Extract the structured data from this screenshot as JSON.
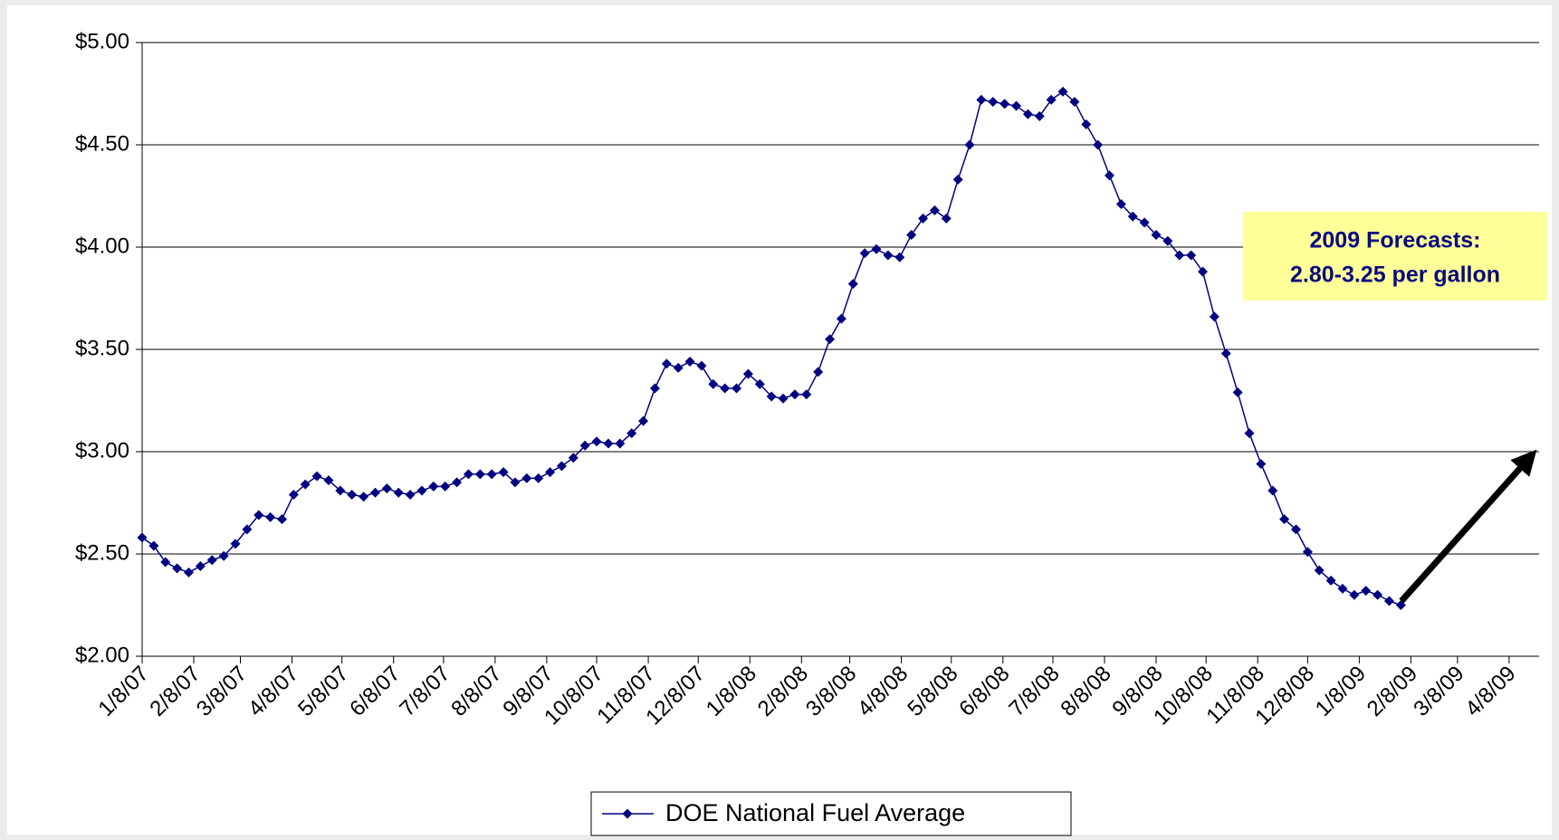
{
  "chart_data": {
    "type": "line",
    "x": [
      "1/8/07",
      "1/15/07",
      "1/22/07",
      "1/29/07",
      "2/5/07",
      "2/12/07",
      "2/19/07",
      "2/26/07",
      "3/5/07",
      "3/12/07",
      "3/19/07",
      "3/26/07",
      "4/2/07",
      "4/9/07",
      "4/16/07",
      "4/23/07",
      "4/30/07",
      "5/7/07",
      "5/14/07",
      "5/21/07",
      "5/28/07",
      "6/4/07",
      "6/11/07",
      "6/18/07",
      "6/25/07",
      "7/2/07",
      "7/9/07",
      "7/16/07",
      "7/23/07",
      "7/30/07",
      "8/6/07",
      "8/13/07",
      "8/20/07",
      "8/27/07",
      "9/3/07",
      "9/10/07",
      "9/17/07",
      "9/24/07",
      "10/1/07",
      "10/8/07",
      "10/15/07",
      "10/22/07",
      "10/29/07",
      "11/5/07",
      "11/12/07",
      "11/19/07",
      "11/26/07",
      "12/3/07",
      "12/10/07",
      "12/17/07",
      "12/24/07",
      "12/31/07",
      "1/7/08",
      "1/14/08",
      "1/21/08",
      "1/28/08",
      "2/4/08",
      "2/11/08",
      "2/18/08",
      "2/25/08",
      "3/3/08",
      "3/10/08",
      "3/17/08",
      "3/24/08",
      "3/31/08",
      "4/7/08",
      "4/14/08",
      "4/21/08",
      "4/28/08",
      "5/5/08",
      "5/12/08",
      "5/19/08",
      "5/26/08",
      "6/2/08",
      "6/9/08",
      "6/16/08",
      "6/23/08",
      "6/30/08",
      "7/7/08",
      "7/14/08",
      "7/21/08",
      "7/28/08",
      "8/4/08",
      "8/11/08",
      "8/18/08",
      "8/25/08",
      "9/1/08",
      "9/8/08",
      "9/15/08",
      "9/22/08",
      "9/29/08",
      "10/6/08",
      "10/13/08",
      "10/20/08",
      "10/27/08",
      "11/3/08",
      "11/10/08",
      "11/17/08",
      "11/24/08",
      "12/1/08",
      "12/8/08",
      "12/15/08",
      "12/22/08",
      "12/29/08",
      "1/5/09",
      "1/12/09",
      "1/19/09",
      "1/26/09",
      "2/2/09"
    ],
    "series": [
      {
        "name": "DOE National Fuel Average",
        "color": "#000080",
        "values": [
          2.58,
          2.54,
          2.46,
          2.43,
          2.41,
          2.44,
          2.47,
          2.49,
          2.55,
          2.62,
          2.69,
          2.68,
          2.67,
          2.79,
          2.84,
          2.88,
          2.86,
          2.81,
          2.79,
          2.78,
          2.8,
          2.82,
          2.8,
          2.79,
          2.81,
          2.83,
          2.83,
          2.85,
          2.89,
          2.89,
          2.89,
          2.9,
          2.85,
          2.87,
          2.87,
          2.9,
          2.93,
          2.97,
          3.03,
          3.05,
          3.04,
          3.04,
          3.09,
          3.15,
          3.31,
          3.43,
          3.41,
          3.44,
          3.42,
          3.33,
          3.31,
          3.31,
          3.38,
          3.33,
          3.27,
          3.26,
          3.28,
          3.28,
          3.39,
          3.55,
          3.65,
          3.82,
          3.97,
          3.99,
          3.96,
          3.95,
          4.06,
          4.14,
          4.18,
          4.14,
          4.33,
          4.5,
          4.72,
          4.71,
          4.7,
          4.69,
          4.65,
          4.64,
          4.72,
          4.76,
          4.71,
          4.6,
          4.5,
          4.35,
          4.21,
          4.15,
          4.12,
          4.06,
          4.03,
          3.96,
          3.96,
          3.88,
          3.66,
          3.48,
          3.29,
          3.09,
          2.94,
          2.81,
          2.67,
          2.62,
          2.51,
          2.42,
          2.37,
          2.33,
          2.3,
          2.32,
          2.3,
          2.27,
          2.25
        ]
      }
    ],
    "xlim": [
      "1/8/07",
      "4/26/09"
    ],
    "xticks": [
      "1/8/07",
      "2/8/07",
      "3/8/07",
      "4/8/07",
      "5/8/07",
      "6/8/07",
      "7/8/07",
      "8/8/07",
      "9/8/07",
      "10/8/07",
      "11/8/07",
      "12/8/07",
      "1/8/08",
      "2/8/08",
      "3/8/08",
      "4/8/08",
      "5/8/08",
      "6/8/08",
      "7/8/08",
      "8/8/08",
      "9/8/08",
      "10/8/08",
      "11/8/08",
      "12/8/08",
      "1/8/09",
      "2/8/09",
      "3/8/09",
      "4/8/09"
    ],
    "ylim": [
      2,
      5
    ],
    "yticks": [
      {
        "value": 2,
        "label": "$2.00"
      },
      {
        "value": 2.5,
        "label": "$2.50"
      },
      {
        "value": 3,
        "label": "$3.00"
      },
      {
        "value": 3.5,
        "label": "$3.50"
      },
      {
        "value": 4,
        "label": "$4.00"
      },
      {
        "value": 4.5,
        "label": "$4.50"
      },
      {
        "value": 5,
        "label": "$5.00"
      }
    ],
    "grid": true,
    "legend": "bottom",
    "annotation": [
      "2009 Forecasts:",
      "2.80-3.25 per gallon"
    ]
  }
}
